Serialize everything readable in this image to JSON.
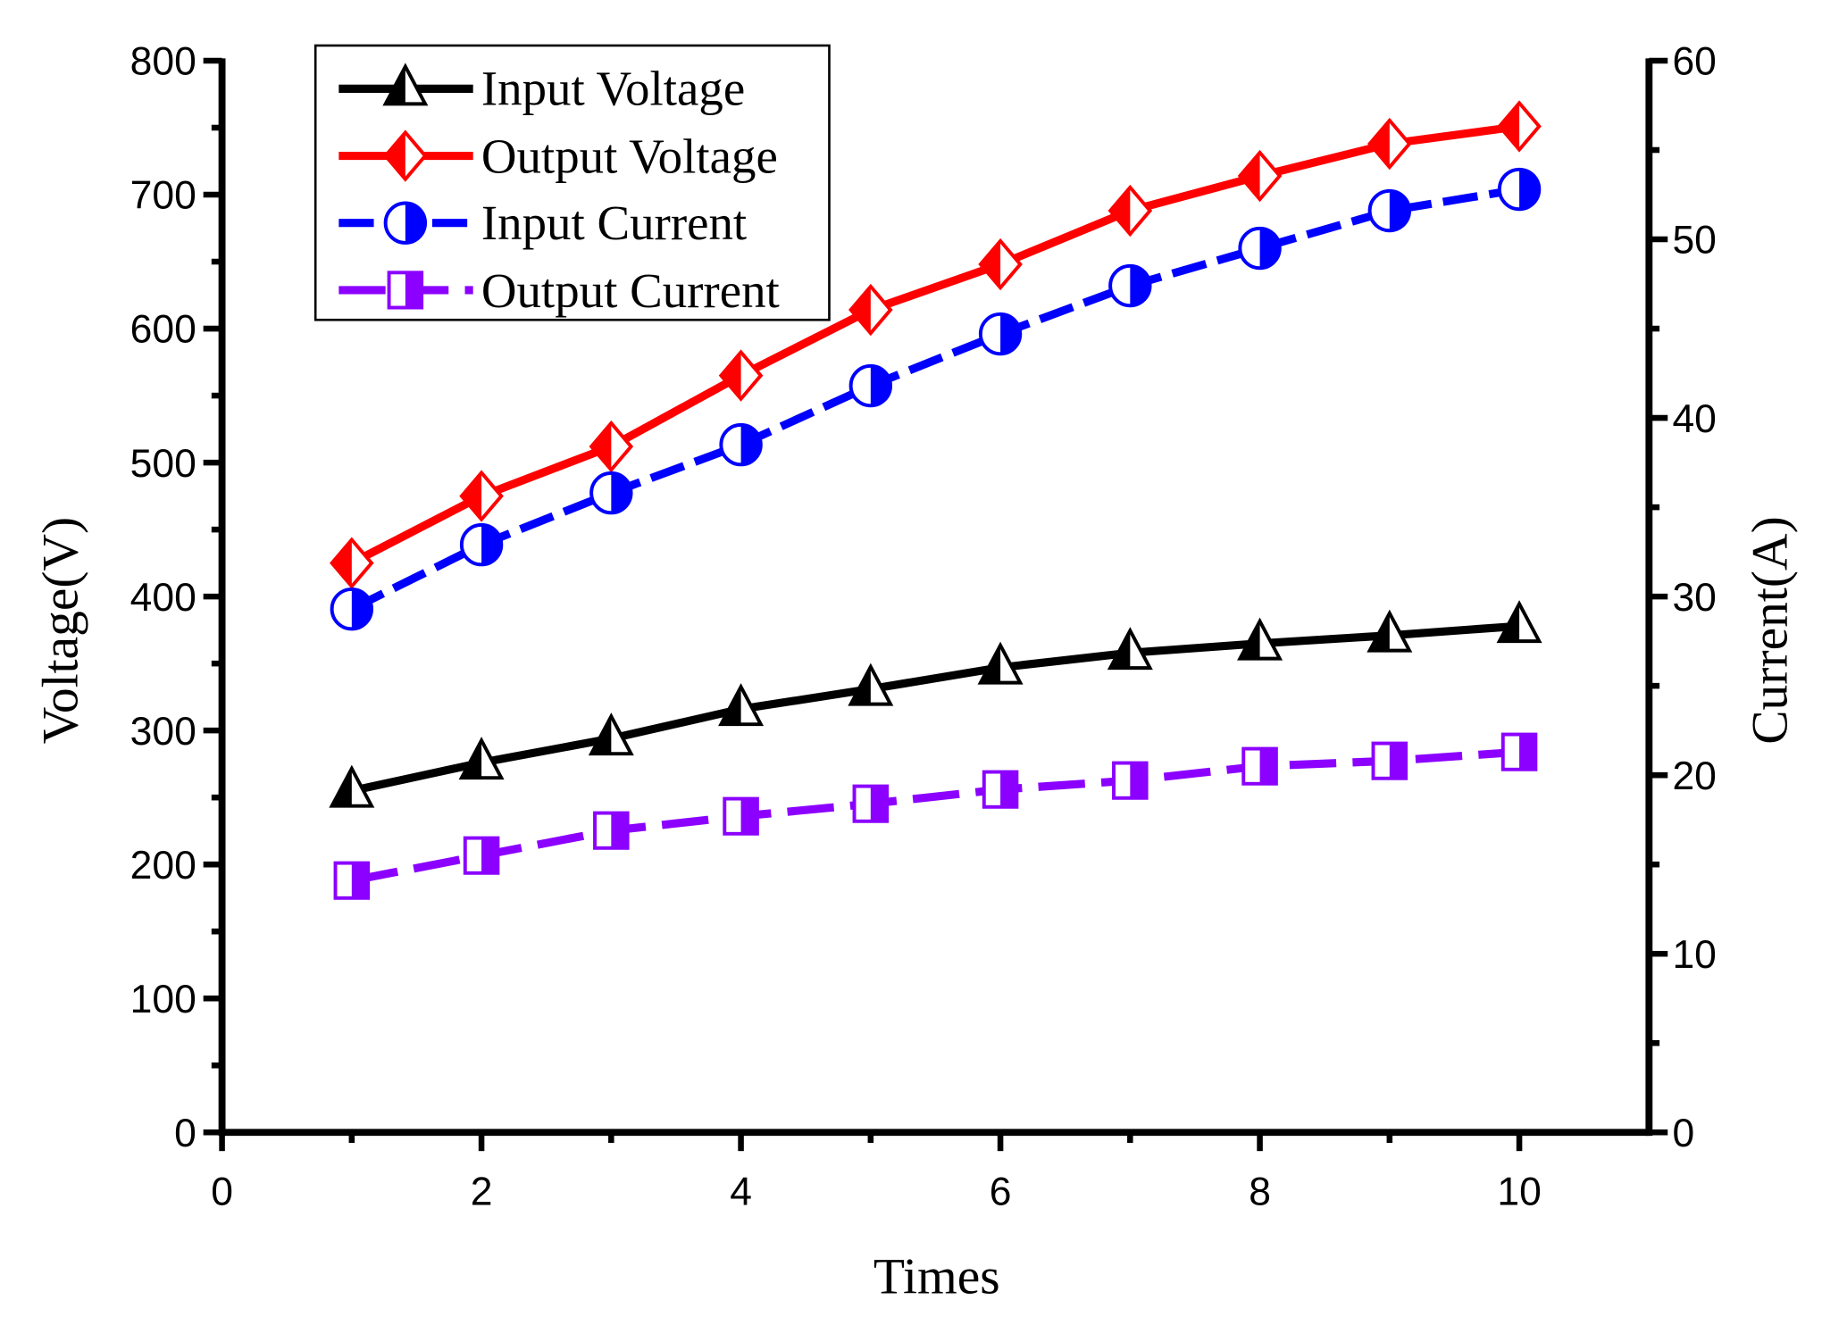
{
  "chart_data": {
    "type": "line",
    "xlabel": "Times",
    "ylabel": "Voltage(V)",
    "y2label": "Current(A)",
    "xlim": [
      0,
      11
    ],
    "ylim": [
      0,
      800
    ],
    "y2lim": [
      0,
      60
    ],
    "xticks": [
      "0",
      "2",
      "4",
      "6",
      "8",
      "10"
    ],
    "yticks": [
      "0",
      "100",
      "200",
      "300",
      "400",
      "500",
      "600",
      "700",
      "800"
    ],
    "y2ticks": [
      "0",
      "10",
      "20",
      "30",
      "40",
      "50",
      "60"
    ],
    "legend_position": "top-left",
    "x": [
      1,
      2,
      3,
      4,
      5,
      6,
      7,
      8,
      9,
      10
    ],
    "series": [
      {
        "name": "Input Voltage",
        "axis": "left",
        "color": "#000000",
        "marker": "triangle",
        "values": [
          255,
          276,
          294,
          316,
          331,
          347,
          358,
          365,
          371,
          378
        ]
      },
      {
        "name": "Output Voltage",
        "axis": "left",
        "color": "#ff0000",
        "marker": "diamond",
        "values": [
          425,
          475,
          512,
          565,
          614,
          648,
          688,
          714,
          738,
          751
        ]
      },
      {
        "name": "Input Current",
        "axis": "right",
        "color": "#0000ff",
        "marker": "circle",
        "values": [
          29.3,
          32.9,
          35.8,
          38.5,
          41.8,
          44.7,
          47.4,
          49.5,
          51.6,
          52.8
        ]
      },
      {
        "name": "Output Current",
        "axis": "right",
        "color": "#8b00ff",
        "marker": "square",
        "values": [
          14.1,
          15.5,
          16.9,
          17.7,
          18.4,
          19.2,
          19.7,
          20.5,
          20.8,
          21.3
        ]
      }
    ]
  }
}
